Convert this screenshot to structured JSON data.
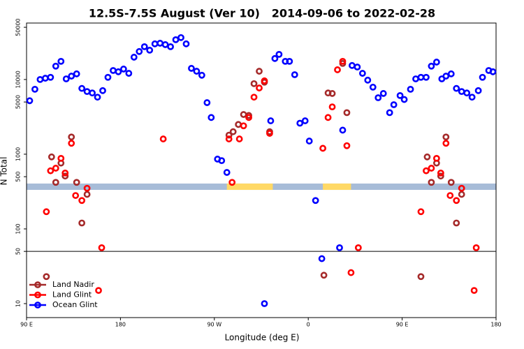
{
  "chart_data": {
    "type": "scatter",
    "title": "12.5S-7.5S August (Ver 10)   2014-09-06 to 2022-02-28",
    "x_label": "Longitude (deg E)",
    "y_label": "N Total",
    "log_y": true,
    "legend": "lower left",
    "xlim": [
      90,
      540
    ],
    "xticks": [
      {
        "value": 90,
        "label": "90 E"
      },
      180,
      {
        "value": 270,
        "label": "90 W"
      },
      {
        "value": 360,
        "label": "0"
      },
      {
        "value": 450,
        "label": "90 E"
      },
      {
        "value": 540,
        "label": "180"
      }
    ],
    "ylim": [
      6.5,
      57000
    ],
    "yticks": [
      10,
      50,
      100,
      500,
      1000,
      5000,
      10000,
      50000
    ],
    "hline": 50,
    "band": [
      333,
      405
    ],
    "band_color": "#a7bcd8",
    "highlights": [
      [
        282,
        326
      ],
      [
        374,
        401
      ]
    ],
    "highlight_color": "#ffd966",
    "series": [
      {
        "name": "Land Nadir",
        "color": "#a52a2a",
        "x": [
          109,
          114,
          118,
          123,
          127,
          133,
          138,
          143,
          148,
          284,
          288,
          293,
          298,
          303,
          308,
          313,
          318,
          323,
          375,
          379,
          383,
          393,
          397,
          468,
          474,
          478,
          483,
          487,
          492,
          497,
          502,
          507
        ],
        "values": [
          23,
          920,
          420,
          760,
          510,
          1700,
          420,
          120,
          290,
          1800,
          2000,
          2500,
          3400,
          3300,
          8800,
          12900,
          9200,
          2000,
          24,
          6600,
          6500,
          16400,
          3600,
          23,
          920,
          420,
          760,
          510,
          1700,
          420,
          120,
          290
        ]
      },
      {
        "name": "Land Glint",
        "color": "#ff0000",
        "x": [
          109,
          113,
          118,
          123,
          127,
          133,
          137,
          143,
          148,
          159,
          162,
          221,
          284,
          287,
          294,
          298,
          303,
          308,
          313,
          318,
          323,
          374,
          379,
          383,
          388,
          393,
          397,
          401,
          408,
          468,
          473,
          478,
          483,
          487,
          492,
          496,
          502,
          507,
          519,
          521
        ],
        "values": [
          170,
          600,
          650,
          880,
          560,
          1400,
          280,
          240,
          350,
          15,
          56,
          1600,
          1600,
          420,
          1600,
          2400,
          3100,
          5800,
          7700,
          9600,
          1900,
          1200,
          3100,
          4300,
          13500,
          17500,
          1300,
          26,
          56,
          170,
          600,
          650,
          880,
          560,
          1400,
          280,
          240,
          350,
          15,
          56
        ]
      },
      {
        "name": "Ocean Glint",
        "color": "#0000ff",
        "x": [
          93,
          98,
          103,
          108,
          113,
          118,
          123,
          128,
          133,
          138,
          143,
          148,
          153,
          158,
          163,
          168,
          173,
          178,
          183,
          188,
          193,
          198,
          203,
          208,
          213,
          218,
          223,
          228,
          233,
          238,
          243,
          248,
          253,
          258,
          263,
          267,
          273,
          277,
          282,
          318,
          324,
          328,
          332,
          338,
          342,
          347,
          352,
          357,
          361,
          367,
          373,
          390,
          393,
          402,
          407,
          412,
          417,
          422,
          427,
          432,
          438,
          442,
          448,
          452,
          458,
          463,
          468,
          473,
          478,
          483,
          488,
          492,
          497,
          502,
          507,
          512,
          517,
          523,
          527,
          533,
          537
        ],
        "values": [
          5200,
          7400,
          10000,
          10400,
          10700,
          15100,
          17500,
          10200,
          11100,
          11900,
          7600,
          6900,
          6600,
          5800,
          7100,
          10700,
          13200,
          12700,
          13800,
          12100,
          19900,
          23700,
          27500,
          24700,
          30000,
          30600,
          29300,
          27500,
          34100,
          36400,
          30000,
          14100,
          12900,
          11400,
          4900,
          3100,
          860,
          820,
          570,
          10,
          2800,
          19100,
          21700,
          17500,
          17500,
          11600,
          2600,
          2800,
          1500,
          240,
          40,
          56,
          2100,
          15400,
          14700,
          12100,
          9800,
          7900,
          5700,
          6500,
          3600,
          4600,
          6100,
          5400,
          7400,
          10200,
          10700,
          10700,
          15100,
          17100,
          10200,
          11100,
          11900,
          7600,
          6900,
          6600,
          5800,
          7100,
          10700,
          13200,
          12700
        ]
      }
    ]
  }
}
